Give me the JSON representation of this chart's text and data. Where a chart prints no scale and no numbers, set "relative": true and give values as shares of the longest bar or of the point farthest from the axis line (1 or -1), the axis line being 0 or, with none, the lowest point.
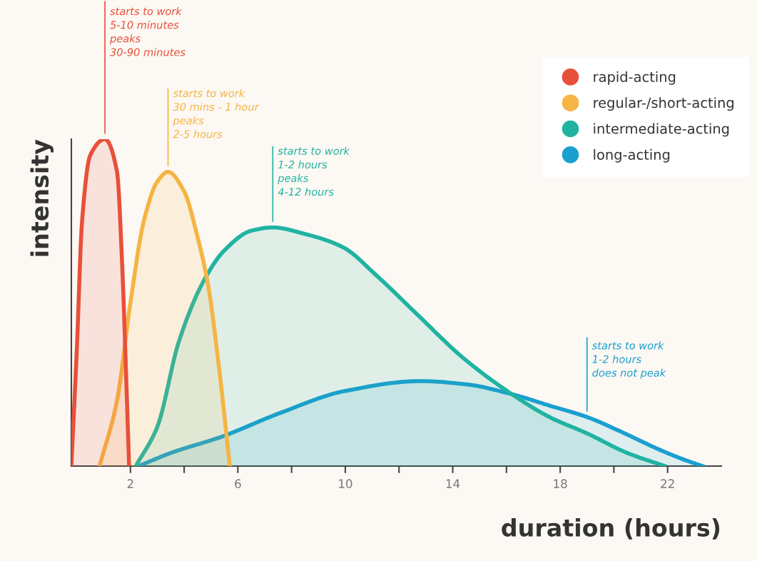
{
  "chart_data": {
    "type": "area",
    "relative": true,
    "xlabel": "duration (hours)",
    "ylabel": "intensity",
    "xlim": [
      -0.2,
      24
    ],
    "xticks": [
      {
        "value": 2,
        "label": "2"
      },
      {
        "value": 4,
        "label": null
      },
      {
        "value": 6,
        "label": "6"
      },
      {
        "value": 8,
        "label": null
      },
      {
        "value": 10,
        "label": "10"
      },
      {
        "value": 12,
        "label": null
      },
      {
        "value": 14,
        "label": "14"
      },
      {
        "value": 16,
        "label": null
      },
      {
        "value": 18,
        "label": "18"
      },
      {
        "value": 20,
        "label": null
      },
      {
        "value": 22,
        "label": "22"
      }
    ],
    "legend": "top right",
    "grid": false,
    "marker": "none",
    "line_style": "solid",
    "series": [
      {
        "name": "rapid-acting",
        "color": "#e8503a",
        "x": [
          -0.2,
          0.0,
          0.2,
          0.5,
          1.05,
          1.5,
          1.7,
          1.85,
          1.95
        ],
        "values": [
          0,
          0.35,
          0.75,
          0.95,
          1.0,
          0.9,
          0.6,
          0.25,
          0
        ]
      },
      {
        "name": "regular-/short-acting",
        "color": "#f5b443",
        "x": [
          0.85,
          1.5,
          2.0,
          2.5,
          3.0,
          3.4,
          4.0,
          4.5,
          4.9,
          5.3,
          5.7
        ],
        "values": [
          0,
          0.2,
          0.5,
          0.75,
          0.87,
          0.9,
          0.84,
          0.7,
          0.55,
          0.3,
          0
        ]
      },
      {
        "name": "intermediate-acting",
        "color": "#20b3a2",
        "x": [
          2.2,
          3.0,
          3.8,
          4.75,
          5.5,
          6.5,
          7.3,
          8.5,
          9.9,
          11.2,
          12.6,
          14.4,
          16.2,
          17.6,
          19.0,
          20.5,
          21.9
        ],
        "values": [
          0,
          0.12,
          0.38,
          0.57,
          0.66,
          0.72,
          0.73,
          0.71,
          0.67,
          0.58,
          0.47,
          0.33,
          0.22,
          0.15,
          0.1,
          0.04,
          0
        ]
      },
      {
        "name": "long-acting",
        "color": "#1a9fd0",
        "x": [
          2.3,
          3.5,
          5.4,
          7.5,
          10.0,
          12.8,
          14.5,
          16.2,
          17.6,
          19.0,
          20.4,
          21.7,
          22.6,
          23.3
        ],
        "values": [
          0,
          0.04,
          0.09,
          0.16,
          0.23,
          0.26,
          0.25,
          0.22,
          0.185,
          0.15,
          0.1,
          0.05,
          0.02,
          0
        ]
      }
    ],
    "annotations": [
      {
        "text": "starts to work\n5-10 minutes\npeaks\n30-90 minutes",
        "x": 1.05,
        "y": 1.0
      },
      {
        "text": "starts to work\n30 mins - 1 hour\npeaks\n2-5 hours",
        "x": 3.4,
        "y": 0.9
      },
      {
        "text": "starts to work\n1-2 hours\npeaks\n4-12 hours",
        "x": 7.3,
        "y": 0.73
      },
      {
        "text": "starts to work\n1-2 hours\ndoes not peak",
        "x": 19.0,
        "y": 0.15
      }
    ]
  }
}
